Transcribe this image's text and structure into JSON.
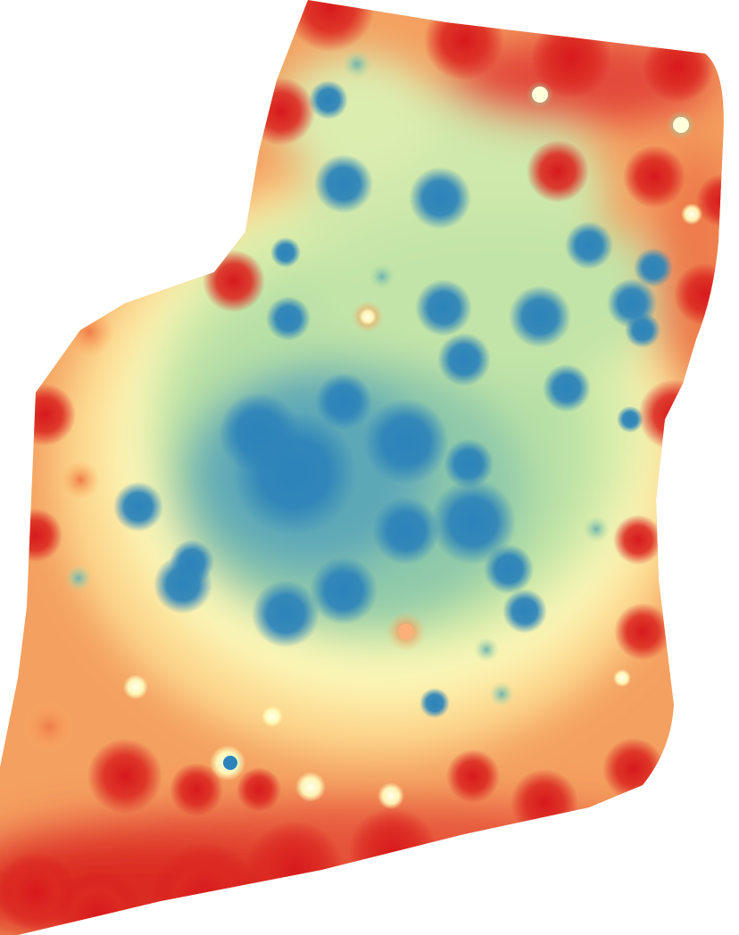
{
  "map": {
    "type": "interpolated-heatmap",
    "color_ramp": {
      "low": "#2b83ba",
      "low_mid": "#abdda4",
      "mid": "#ffffbf",
      "high_mid": "#fdae61",
      "high": "#d7191c"
    },
    "background": "#ffffff"
  }
}
